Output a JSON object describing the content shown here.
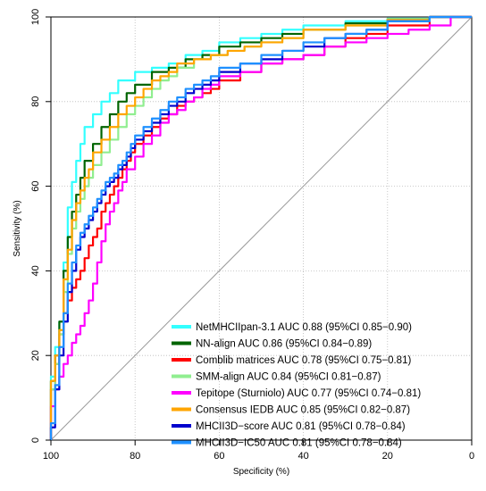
{
  "chart_data": {
    "type": "line",
    "title": "",
    "xlabel": "Specificity (%)",
    "ylabel": "Sensitivity (%)",
    "xlim": [
      100,
      0
    ],
    "ylim": [
      0,
      100
    ],
    "x_reversed": true,
    "x_ticks": [
      "100",
      "80",
      "60",
      "40",
      "20",
      "0"
    ],
    "y_ticks": [
      "0",
      "20",
      "40",
      "60",
      "80",
      "100"
    ],
    "legend_position": "bottom-right",
    "reference_line": {
      "color": "#999999",
      "from": [
        100,
        0
      ],
      "to": [
        0,
        100
      ]
    },
    "series": [
      {
        "name": "NetMHCIIpan-3.1 AUC 0.88 (95%CI 0.85−0.90)",
        "color": "#33ffff",
        "points": [
          [
            100,
            0
          ],
          [
            100,
            8
          ],
          [
            99,
            15
          ],
          [
            98,
            22
          ],
          [
            97,
            28
          ],
          [
            96,
            42
          ],
          [
            95,
            55
          ],
          [
            94,
            61
          ],
          [
            93,
            66
          ],
          [
            92,
            70
          ],
          [
            90,
            74
          ],
          [
            88,
            77
          ],
          [
            86,
            80
          ],
          [
            84,
            82
          ],
          [
            80,
            85
          ],
          [
            76,
            87
          ],
          [
            72,
            88
          ],
          [
            68,
            89
          ],
          [
            64,
            91
          ],
          [
            60,
            92
          ],
          [
            55,
            94
          ],
          [
            50,
            95
          ],
          [
            45,
            96
          ],
          [
            40,
            97
          ],
          [
            30,
            98
          ],
          [
            20,
            99
          ],
          [
            10,
            99.6
          ],
          [
            0,
            100
          ]
        ]
      },
      {
        "name": "NN-align AUC 0.86 (95%CI 0.84−0.89)",
        "color": "#006400",
        "points": [
          [
            100,
            0
          ],
          [
            100,
            9
          ],
          [
            99,
            14
          ],
          [
            98,
            20
          ],
          [
            97,
            28
          ],
          [
            96,
            40
          ],
          [
            95,
            48
          ],
          [
            94,
            54
          ],
          [
            93,
            58
          ],
          [
            92,
            62
          ],
          [
            90,
            66
          ],
          [
            88,
            70
          ],
          [
            86,
            74
          ],
          [
            84,
            77
          ],
          [
            82,
            80
          ],
          [
            80,
            82
          ],
          [
            76,
            84
          ],
          [
            72,
            87
          ],
          [
            68,
            88
          ],
          [
            64,
            90
          ],
          [
            60,
            91
          ],
          [
            55,
            93
          ],
          [
            50,
            94
          ],
          [
            45,
            95
          ],
          [
            40,
            96
          ],
          [
            30,
            97
          ],
          [
            20,
            98.5
          ],
          [
            10,
            99.5
          ],
          [
            0,
            100
          ]
        ]
      },
      {
        "name": "Comblib matrices AUC 0.78 (95%CI 0.75−0.81)",
        "color": "#ff0000",
        "points": [
          [
            100,
            0
          ],
          [
            100,
            6
          ],
          [
            99,
            12
          ],
          [
            98,
            18
          ],
          [
            97,
            25
          ],
          [
            96,
            30
          ],
          [
            95,
            33
          ],
          [
            94,
            36
          ],
          [
            93,
            38
          ],
          [
            92,
            40
          ],
          [
            91,
            43
          ],
          [
            90,
            46
          ],
          [
            89,
            48
          ],
          [
            88,
            50
          ],
          [
            87,
            54
          ],
          [
            86,
            56
          ],
          [
            85,
            58
          ],
          [
            84,
            60
          ],
          [
            83,
            62
          ],
          [
            82,
            64
          ],
          [
            81,
            66
          ],
          [
            80,
            68
          ],
          [
            78,
            70
          ],
          [
            76,
            72
          ],
          [
            74,
            74
          ],
          [
            72,
            76
          ],
          [
            70,
            77
          ],
          [
            68,
            79
          ],
          [
            66,
            80
          ],
          [
            64,
            81
          ],
          [
            62,
            82
          ],
          [
            60,
            83
          ],
          [
            55,
            85
          ],
          [
            50,
            87
          ],
          [
            45,
            89
          ],
          [
            40,
            90
          ],
          [
            35,
            91
          ],
          [
            30,
            93
          ],
          [
            25,
            95
          ],
          [
            20,
            96
          ],
          [
            10,
            98
          ],
          [
            0,
            100
          ]
        ]
      },
      {
        "name": "SMM-align AUC 0.84 (95%CI 0.81−0.87)",
        "color": "#90ee90",
        "points": [
          [
            100,
            0
          ],
          [
            100,
            7
          ],
          [
            99,
            12
          ],
          [
            98,
            18
          ],
          [
            97,
            25
          ],
          [
            96,
            35
          ],
          [
            95,
            44
          ],
          [
            94,
            50
          ],
          [
            93,
            54
          ],
          [
            92,
            57
          ],
          [
            91,
            60
          ],
          [
            90,
            62
          ],
          [
            88,
            65
          ],
          [
            86,
            68
          ],
          [
            84,
            71
          ],
          [
            82,
            74
          ],
          [
            80,
            77
          ],
          [
            78,
            79
          ],
          [
            76,
            81
          ],
          [
            74,
            83
          ],
          [
            72,
            85
          ],
          [
            70,
            86
          ],
          [
            66,
            88
          ],
          [
            62,
            90
          ],
          [
            58,
            91
          ],
          [
            54,
            92
          ],
          [
            50,
            93
          ],
          [
            45,
            94
          ],
          [
            40,
            95
          ],
          [
            30,
            97
          ],
          [
            20,
            98
          ],
          [
            10,
            99.5
          ],
          [
            0,
            100
          ]
        ]
      },
      {
        "name": "Tepitope (Sturniolo) AUC 0.77 (95%CI 0.74−0.81)",
        "color": "#ff00ff",
        "points": [
          [
            100,
            0
          ],
          [
            100,
            5
          ],
          [
            99,
            8
          ],
          [
            98,
            12
          ],
          [
            97,
            15
          ],
          [
            96,
            18
          ],
          [
            95,
            20
          ],
          [
            94,
            23
          ],
          [
            93,
            25
          ],
          [
            92,
            27
          ],
          [
            91,
            30
          ],
          [
            90,
            33
          ],
          [
            89,
            37
          ],
          [
            88,
            42
          ],
          [
            87,
            47
          ],
          [
            86,
            51
          ],
          [
            85,
            54
          ],
          [
            84,
            56
          ],
          [
            83,
            59
          ],
          [
            82,
            61
          ],
          [
            80,
            64
          ],
          [
            78,
            67
          ],
          [
            76,
            70
          ],
          [
            74,
            72
          ],
          [
            72,
            75
          ],
          [
            70,
            77
          ],
          [
            68,
            78
          ],
          [
            66,
            80
          ],
          [
            64,
            81
          ],
          [
            62,
            83
          ],
          [
            60,
            84
          ],
          [
            55,
            86
          ],
          [
            50,
            87
          ],
          [
            45,
            89
          ],
          [
            40,
            90
          ],
          [
            35,
            91
          ],
          [
            30,
            93
          ],
          [
            25,
            94
          ],
          [
            20,
            95
          ],
          [
            15,
            96
          ],
          [
            10,
            97
          ],
          [
            5,
            98
          ],
          [
            0,
            100
          ]
        ]
      },
      {
        "name": "Consensus IEDB AUC 0.85 (95%CI 0.82−0.87)",
        "color": "#ffa500",
        "points": [
          [
            100,
            0
          ],
          [
            100,
            8
          ],
          [
            99,
            14
          ],
          [
            98,
            20
          ],
          [
            97,
            26
          ],
          [
            96,
            38
          ],
          [
            95,
            45
          ],
          [
            94,
            52
          ],
          [
            93,
            56
          ],
          [
            92,
            59
          ],
          [
            91,
            62
          ],
          [
            90,
            64
          ],
          [
            88,
            68
          ],
          [
            86,
            71
          ],
          [
            84,
            74
          ],
          [
            82,
            77
          ],
          [
            80,
            79
          ],
          [
            78,
            81
          ],
          [
            76,
            83
          ],
          [
            74,
            85
          ],
          [
            72,
            86
          ],
          [
            70,
            87
          ],
          [
            66,
            89
          ],
          [
            62,
            90
          ],
          [
            58,
            91
          ],
          [
            54,
            92
          ],
          [
            50,
            93
          ],
          [
            45,
            94
          ],
          [
            40,
            95
          ],
          [
            30,
            97
          ],
          [
            20,
            98
          ],
          [
            10,
            99.3
          ],
          [
            0,
            100
          ]
        ]
      },
      {
        "name": "MHCII3D−score AUC 0.81 (95%CI 0.78−0.84)",
        "color": "#0000cd",
        "points": [
          [
            100,
            0
          ],
          [
            99,
            3
          ],
          [
            98,
            12
          ],
          [
            97,
            20
          ],
          [
            96,
            28
          ],
          [
            95,
            35
          ],
          [
            94,
            40
          ],
          [
            93,
            45
          ],
          [
            92,
            48
          ],
          [
            91,
            50
          ],
          [
            90,
            52
          ],
          [
            89,
            54
          ],
          [
            88,
            56
          ],
          [
            87,
            58
          ],
          [
            86,
            60
          ],
          [
            85,
            61
          ],
          [
            84,
            62
          ],
          [
            83,
            64
          ],
          [
            82,
            65
          ],
          [
            81,
            67
          ],
          [
            80,
            69
          ],
          [
            78,
            71
          ],
          [
            76,
            73
          ],
          [
            74,
            75
          ],
          [
            72,
            77
          ],
          [
            70,
            79
          ],
          [
            68,
            80
          ],
          [
            66,
            82
          ],
          [
            64,
            83
          ],
          [
            62,
            84
          ],
          [
            60,
            85
          ],
          [
            55,
            87
          ],
          [
            50,
            89
          ],
          [
            45,
            90
          ],
          [
            40,
            92
          ],
          [
            35,
            93
          ],
          [
            30,
            95
          ],
          [
            25,
            96
          ],
          [
            20,
            97
          ],
          [
            10,
            99
          ],
          [
            0,
            100
          ]
        ]
      },
      {
        "name": "MHCII3D−IC50 AUC 0.81 (95%CI 0.78−0.84)",
        "color": "#1e90ff",
        "points": [
          [
            100,
            0
          ],
          [
            99,
            4
          ],
          [
            98,
            13
          ],
          [
            97,
            22
          ],
          [
            96,
            30
          ],
          [
            95,
            37
          ],
          [
            94,
            42
          ],
          [
            93,
            46
          ],
          [
            92,
            49
          ],
          [
            91,
            51
          ],
          [
            90,
            53
          ],
          [
            89,
            55
          ],
          [
            88,
            57
          ],
          [
            87,
            59
          ],
          [
            86,
            61
          ],
          [
            85,
            62
          ],
          [
            84,
            63
          ],
          [
            83,
            65
          ],
          [
            82,
            66
          ],
          [
            81,
            68
          ],
          [
            80,
            70
          ],
          [
            78,
            72
          ],
          [
            76,
            74
          ],
          [
            74,
            76
          ],
          [
            72,
            78
          ],
          [
            70,
            80
          ],
          [
            68,
            81
          ],
          [
            66,
            83
          ],
          [
            64,
            84
          ],
          [
            62,
            85
          ],
          [
            60,
            86
          ],
          [
            55,
            88
          ],
          [
            50,
            89
          ],
          [
            45,
            91
          ],
          [
            40,
            92
          ],
          [
            35,
            94
          ],
          [
            30,
            95
          ],
          [
            25,
            96
          ],
          [
            20,
            97
          ],
          [
            10,
            99
          ],
          [
            0,
            100
          ]
        ]
      }
    ]
  }
}
